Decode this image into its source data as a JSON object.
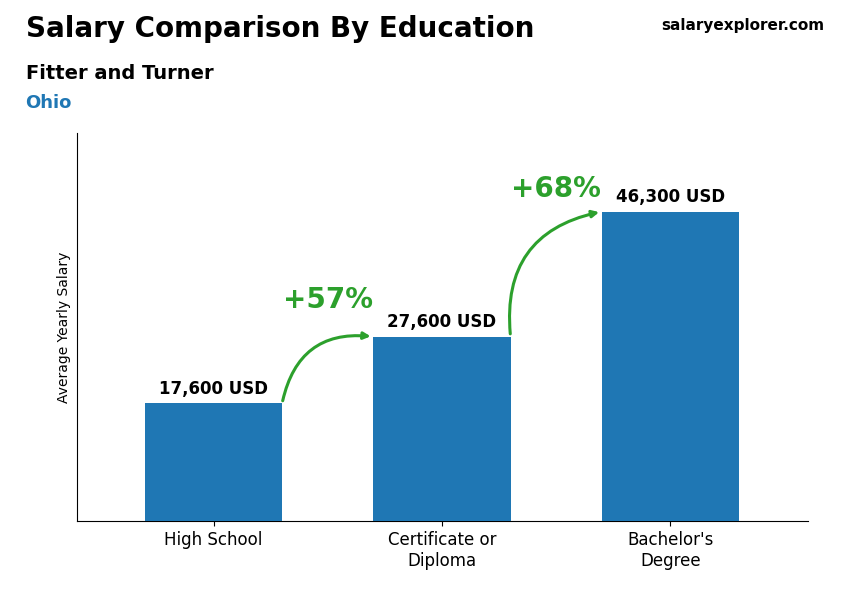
{
  "chart_data": {
    "type": "bar",
    "title": "Salary Comparison By Education",
    "subtitle": "Fitter and Turner",
    "location": "Ohio",
    "source": "salaryexplorer.com",
    "ylabel": "Average Yearly Salary",
    "categories": [
      "High School",
      "Certificate or\nDiploma",
      "Bachelor's\nDegree"
    ],
    "values": [
      17600,
      27600,
      46300
    ],
    "value_labels": [
      "17,600 USD",
      "27,600 USD",
      "46,300 USD"
    ],
    "data_labels": true,
    "annotations": [
      "+57%",
      "+68%"
    ],
    "ylim": [
      0,
      58000
    ],
    "tick_labels": "x"
  }
}
